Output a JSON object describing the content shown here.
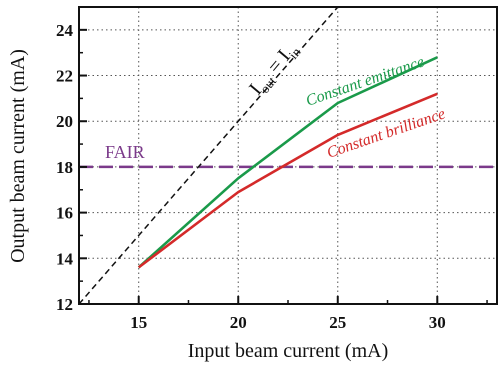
{
  "chart_data": {
    "type": "line",
    "xlabel": "Input beam current (mA)",
    "ylabel": "Output beam current (mA)",
    "xlim": [
      12,
      33
    ],
    "ylim": [
      12,
      25
    ],
    "xticks": [
      15,
      20,
      25,
      30
    ],
    "yticks": [
      12,
      14,
      16,
      18,
      20,
      22,
      24
    ],
    "grid": true,
    "series": [
      {
        "name": "Constant emittance",
        "color": "#1a9a4a",
        "x": [
          15,
          20,
          25,
          30
        ],
        "y": [
          13.6,
          17.5,
          20.8,
          22.8
        ]
      },
      {
        "name": "Constant brilliance",
        "color": "#d42a2a",
        "x": [
          15,
          20,
          25,
          30
        ],
        "y": [
          13.6,
          16.9,
          19.4,
          21.2
        ]
      }
    ],
    "reference_lines": [
      {
        "label": "FAIR",
        "y": 18,
        "color": "#7b3a8a",
        "style": "dashed"
      },
      {
        "style": "dashed",
        "color": "#111111",
        "x": [
          12,
          25
        ],
        "y": [
          12,
          25
        ]
      }
    ],
    "identity_label": {
      "main1": "I",
      "sub1": "out",
      "eq": " = I",
      "sub2": "in"
    }
  }
}
